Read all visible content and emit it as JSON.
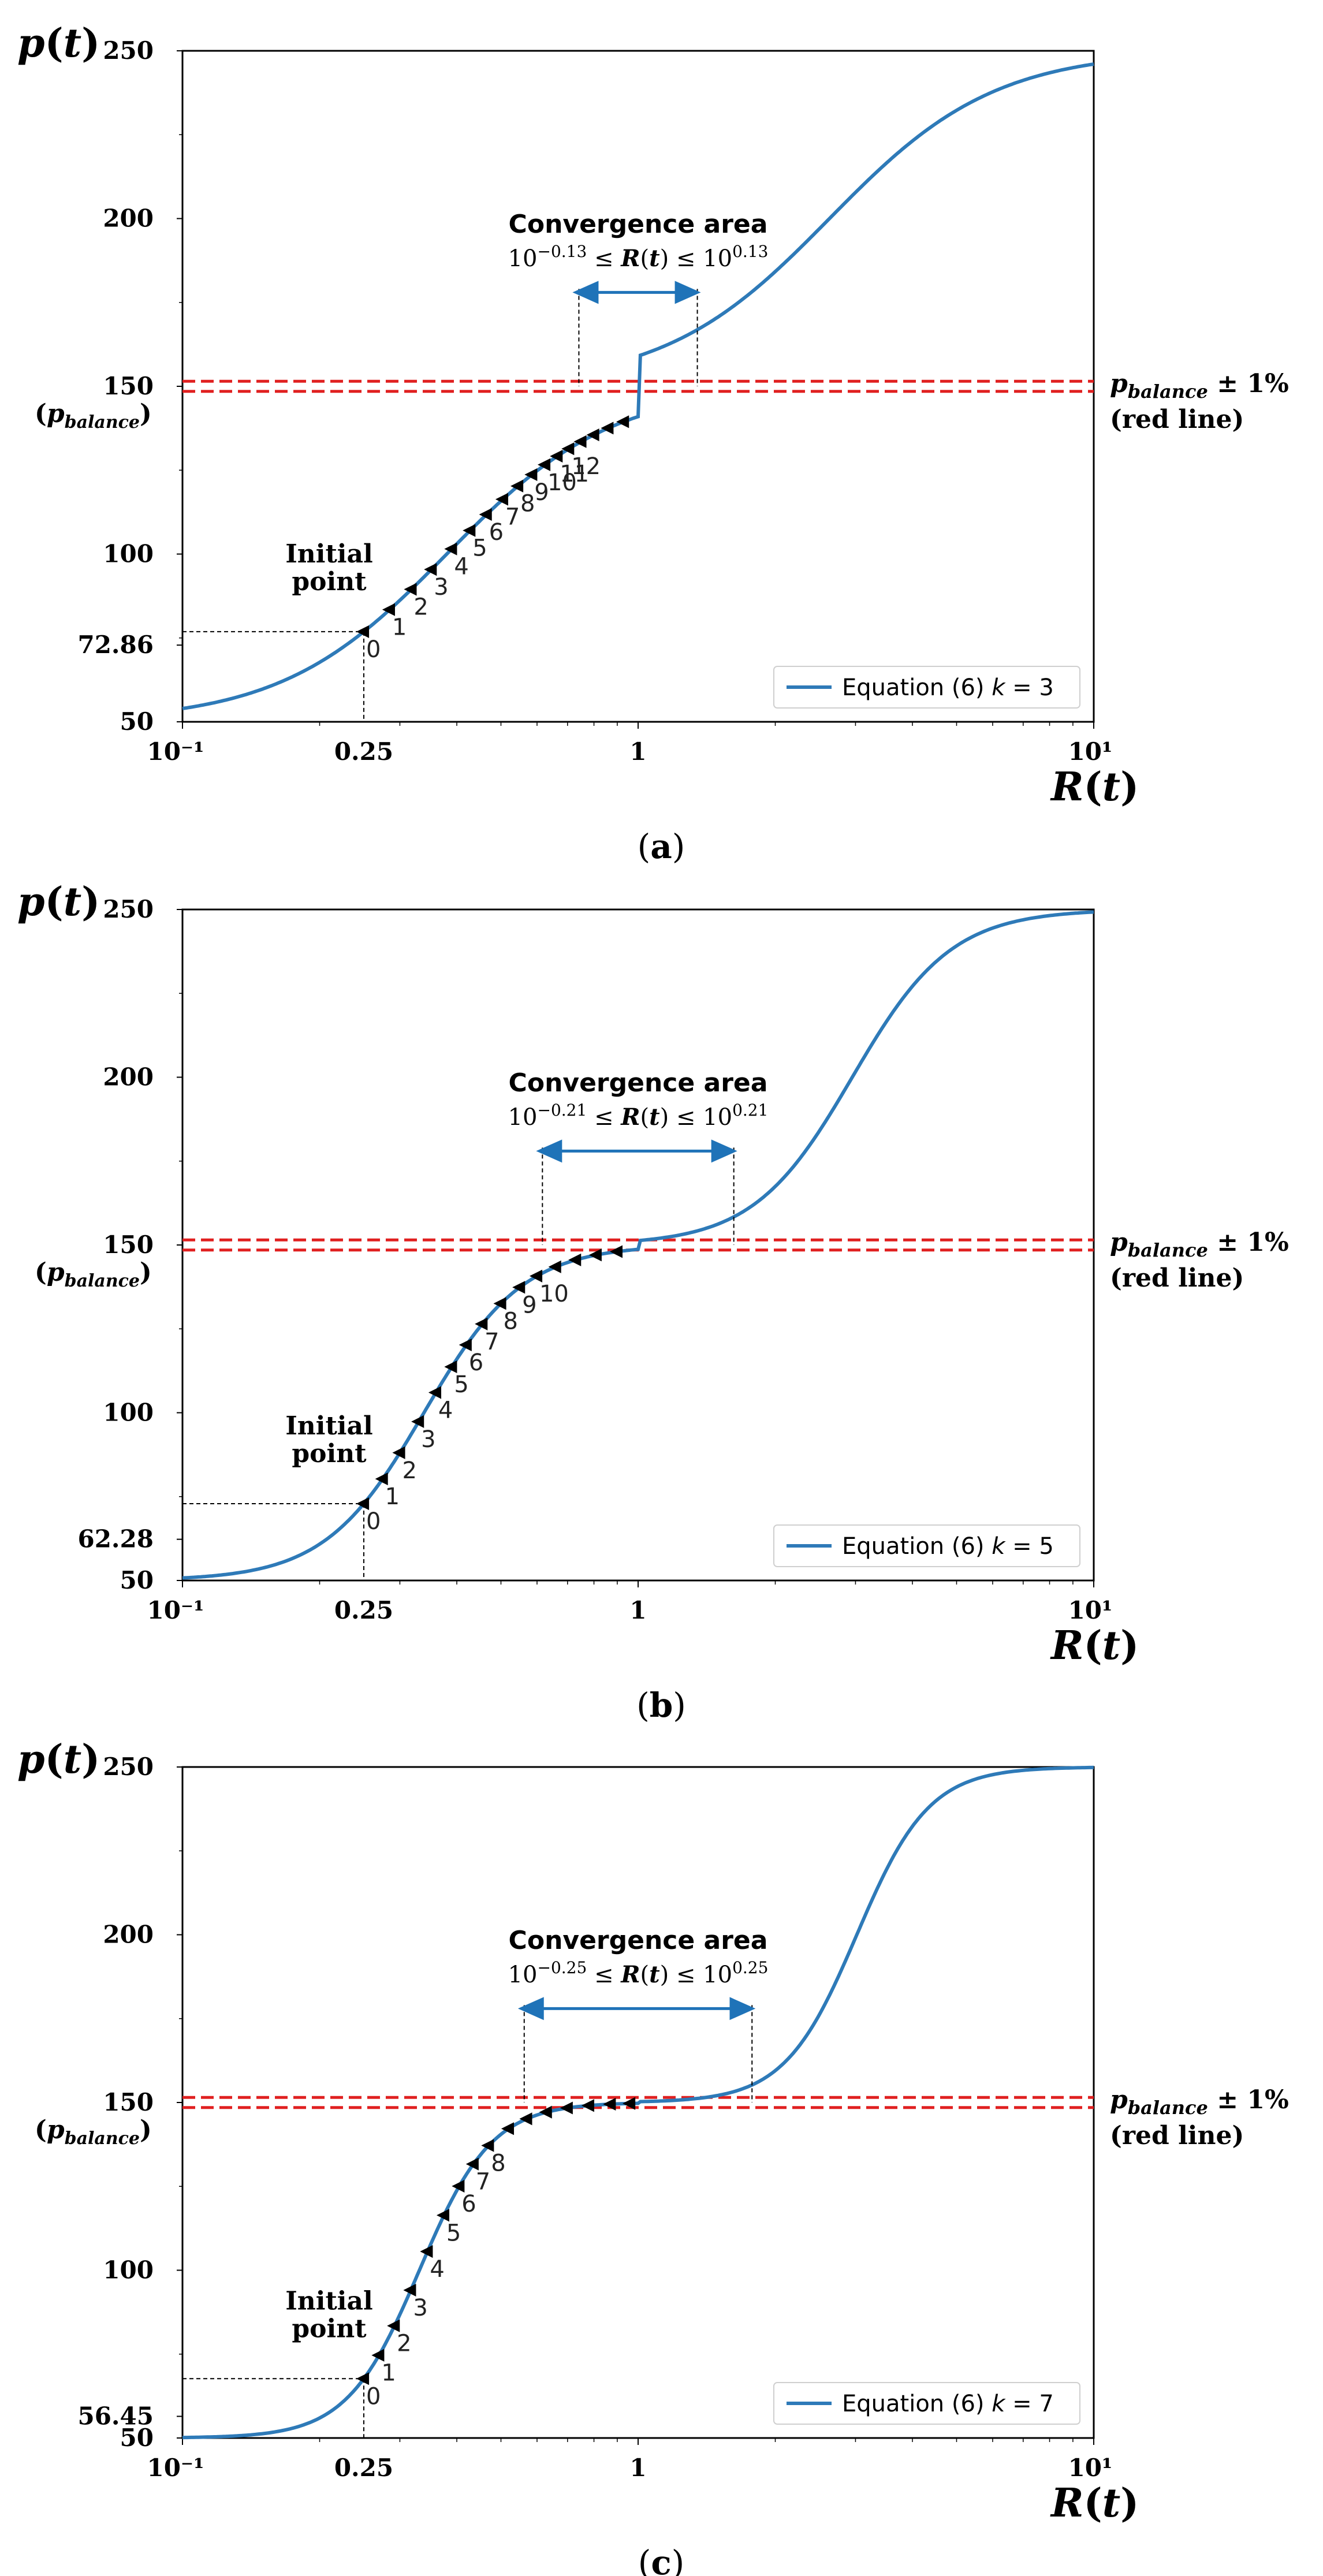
{
  "chart_data": [
    {
      "panel": "(a)",
      "panel_letter": "a",
      "type": "line",
      "k": 3,
      "xscale": "log",
      "xlim": [
        0.1,
        10
      ],
      "ylim": [
        50,
        250
      ],
      "ylabel": "p(t)",
      "xlabel": "R(t)",
      "x_tick_labels": [
        "10⁻¹",
        "0.25",
        "1",
        "10¹"
      ],
      "y_tick_labels": [
        "50",
        "72.86",
        "100",
        "150",
        "200",
        "250"
      ],
      "p_balance": 150,
      "p_balance_label": "(p_balance)",
      "red_line_label_1": "p_balance ± 1%",
      "red_line_label_2": "(red line)",
      "initial_point_label": "Initial point",
      "initial_point_lines": [
        "Initial",
        "point"
      ],
      "initial_point": {
        "x": 0.25,
        "y": 72.86,
        "label": "72.86"
      },
      "convergence_title": "Convergence area",
      "convergence_range_text": "10^−0.13 ≤ R(t) ≤ 10^0.13",
      "convergence_exp": 0.13,
      "legend": "Equation (6) k = 3",
      "curve": {
        "high": 250,
        "low": 50,
        "mid": 150,
        "logR_center": 0.42,
        "slope": 2.75
      },
      "iterations": [
        {
          "n": 0,
          "x": 0.25
        },
        {
          "n": 1,
          "x": 0.285
        },
        {
          "n": 2,
          "x": 0.318
        },
        {
          "n": 3,
          "x": 0.352
        },
        {
          "n": 4,
          "x": 0.39
        },
        {
          "n": 5,
          "x": 0.428
        },
        {
          "n": 6,
          "x": 0.465
        },
        {
          "n": 7,
          "x": 0.505
        },
        {
          "n": 8,
          "x": 0.545
        },
        {
          "n": 9,
          "x": 0.585
        },
        {
          "n": 10,
          "x": 0.625
        },
        {
          "n": 11,
          "x": 0.665
        },
        {
          "n": 12,
          "x": 0.705
        },
        {
          "n": "",
          "x": 0.75
        },
        {
          "n": "",
          "x": 0.8
        },
        {
          "n": "",
          "x": 0.86
        },
        {
          "n": "",
          "x": 0.93
        }
      ]
    },
    {
      "panel": "(b)",
      "panel_letter": "b",
      "type": "line",
      "k": 5,
      "xscale": "log",
      "xlim": [
        0.1,
        10
      ],
      "ylim": [
        50,
        250
      ],
      "ylabel": "p(t)",
      "xlabel": "R(t)",
      "x_tick_labels": [
        "10⁻¹",
        "0.25",
        "1",
        "10¹"
      ],
      "y_tick_labels": [
        "50",
        "62.28",
        "100",
        "150",
        "200",
        "250"
      ],
      "p_balance": 150,
      "p_balance_label": "(p_balance)",
      "red_line_label_1": "p_balance ± 1%",
      "red_line_label_2": "(red line)",
      "initial_point_label": "Initial point",
      "initial_point_lines": [
        "Initial",
        "point"
      ],
      "initial_point": {
        "x": 0.25,
        "y": 62.28,
        "label": "62.28"
      },
      "convergence_title": "Convergence area",
      "convergence_range_text": "10^−0.21 ≤ R(t) ≤ 10^0.21",
      "convergence_exp": 0.21,
      "legend": "Equation (6) k = 5",
      "curve": {
        "high": 250,
        "low": 50,
        "mid": 150,
        "logR_center": 0.47,
        "slope": 4.6
      },
      "iterations": [
        {
          "n": 0,
          "x": 0.25
        },
        {
          "n": 1,
          "x": 0.275
        },
        {
          "n": 2,
          "x": 0.3
        },
        {
          "n": 3,
          "x": 0.33
        },
        {
          "n": 4,
          "x": 0.36
        },
        {
          "n": 5,
          "x": 0.39
        },
        {
          "n": 6,
          "x": 0.42
        },
        {
          "n": 7,
          "x": 0.455
        },
        {
          "n": 8,
          "x": 0.5
        },
        {
          "n": 9,
          "x": 0.55
        },
        {
          "n": 10,
          "x": 0.6
        },
        {
          "n": "",
          "x": 0.66
        },
        {
          "n": "",
          "x": 0.73
        },
        {
          "n": "",
          "x": 0.81
        },
        {
          "n": "",
          "x": 0.9
        }
      ]
    },
    {
      "panel": "(c)",
      "panel_letter": "c",
      "type": "line",
      "k": 7,
      "xscale": "log",
      "xlim": [
        0.1,
        10
      ],
      "ylim": [
        50,
        250
      ],
      "ylabel": "p(t)",
      "xlabel": "R(t)",
      "x_tick_labels": [
        "10⁻¹",
        "0.25",
        "1",
        "10¹"
      ],
      "y_tick_labels": [
        "50",
        "56.45",
        "100",
        "150",
        "200",
        "250"
      ],
      "p_balance": 150,
      "p_balance_label": "(p_balance)",
      "red_line_label_1": "p_balance ± 1%",
      "red_line_label_2": "(red line)",
      "initial_point_label": "Initial point",
      "initial_point_lines": [
        "Initial",
        "point"
      ],
      "initial_point": {
        "x": 0.25,
        "y": 56.45,
        "label": "56.45"
      },
      "convergence_title": "Convergence area",
      "convergence_range_text": "10^−0.25 ≤ R(t) ≤ 10^0.25",
      "convergence_exp": 0.25,
      "legend": "Equation (6) k = 7",
      "curve": {
        "high": 250,
        "low": 50,
        "mid": 150,
        "logR_center": 0.48,
        "slope": 6.3
      },
      "iterations": [
        {
          "n": 0,
          "x": 0.25
        },
        {
          "n": 1,
          "x": 0.27
        },
        {
          "n": 2,
          "x": 0.292
        },
        {
          "n": 3,
          "x": 0.317
        },
        {
          "n": 4,
          "x": 0.345
        },
        {
          "n": 5,
          "x": 0.375
        },
        {
          "n": 6,
          "x": 0.405
        },
        {
          "n": 7,
          "x": 0.435
        },
        {
          "n": 8,
          "x": 0.47
        },
        {
          "n": "",
          "x": 0.52
        },
        {
          "n": "",
          "x": 0.57
        },
        {
          "n": "",
          "x": 0.63
        },
        {
          "n": "",
          "x": 0.7
        },
        {
          "n": "",
          "x": 0.78
        },
        {
          "n": "",
          "x": 0.87
        },
        {
          "n": "",
          "x": 0.96
        }
      ]
    }
  ],
  "colors": {
    "curve": "#2e7ab8",
    "redline": "#e02020",
    "arrow": "#1f73b8",
    "marker": "#000000"
  }
}
